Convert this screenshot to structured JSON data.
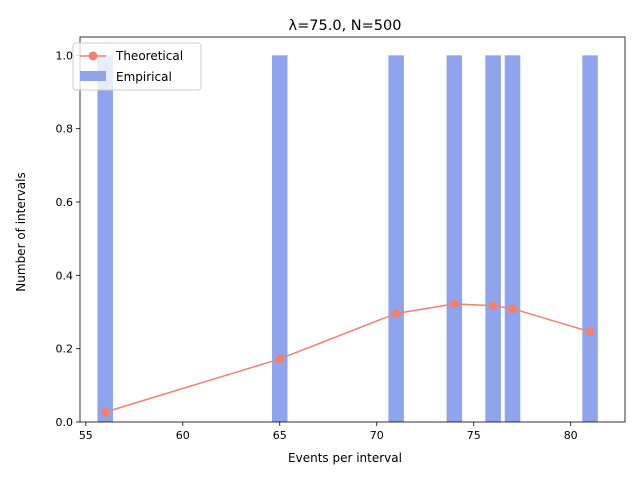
{
  "chart_data": {
    "type": "bar",
    "title": "λ=75.0, N=500",
    "xlabel": "Events per interval",
    "ylabel": "Number of intervals",
    "xlim": [
      54.7,
      82.8
    ],
    "ylim": [
      0,
      1.05
    ],
    "xticks": [
      55,
      60,
      65,
      70,
      75,
      80
    ],
    "yticks": [
      0.0,
      0.2,
      0.4,
      0.6,
      0.8,
      1.0
    ],
    "xtick_labels": [
      "55",
      "60",
      "65",
      "70",
      "75",
      "80"
    ],
    "ytick_labels": [
      "0.0",
      "0.2",
      "0.4",
      "0.6",
      "0.8",
      "1.0"
    ],
    "bar_width": 0.8,
    "grid": false,
    "legend_position": "upper-left",
    "series": [
      {
        "name": "Empirical",
        "kind": "bar",
        "color": "#8ea5ee",
        "x": [
          56,
          65,
          71,
          74,
          76,
          77,
          81
        ],
        "values": [
          1,
          1,
          1,
          1,
          1,
          1,
          1
        ]
      },
      {
        "name": "Theoretical",
        "kind": "line",
        "color": "#f08070",
        "x": [
          56,
          65,
          71,
          74,
          76,
          77,
          81
        ],
        "values": [
          0.027,
          0.172,
          0.296,
          0.322,
          0.317,
          0.309,
          0.246
        ]
      }
    ]
  }
}
